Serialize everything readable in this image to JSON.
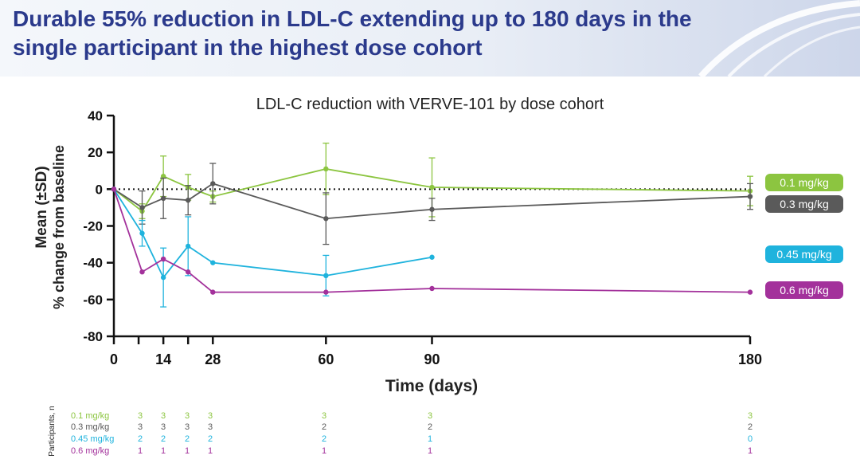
{
  "header": {
    "title": "Durable 55% reduction in LDL-C extending up to 180 days in the single participant in the highest dose cohort"
  },
  "chart_data": {
    "type": "line",
    "title": "LDL-C reduction with VERVE-101 by dose cohort",
    "xlabel": "Time (days)",
    "ylabel": [
      "Mean (±SD)",
      "% change from baseline"
    ],
    "xlim": [
      0,
      180
    ],
    "ylim": [
      -80,
      40
    ],
    "x_ticks": [
      0,
      14,
      28,
      60,
      90,
      180
    ],
    "x_minor_ticks": [
      7,
      21
    ],
    "y_ticks": [
      40,
      20,
      0,
      -20,
      -40,
      -60,
      -80
    ],
    "reference_line": {
      "y": 0,
      "style": "dotted"
    },
    "grid": false,
    "legend_position": "right",
    "series": [
      {
        "name": "0.1 mg/kg",
        "color": "#8cc540",
        "x": [
          0,
          8,
          14,
          21,
          28,
          60,
          90,
          180
        ],
        "y": [
          0,
          -12,
          7,
          1,
          -4,
          11,
          1,
          -1
        ],
        "err": [
          0,
          4,
          11,
          7,
          3,
          14,
          16,
          8
        ]
      },
      {
        "name": "0.3 mg/kg",
        "color": "#5a5a5a",
        "x": [
          0,
          8,
          14,
          21,
          28,
          60,
          90,
          180
        ],
        "y": [
          0,
          -10,
          -5,
          -6,
          3,
          -16,
          -11,
          -4
        ],
        "err": [
          0,
          9,
          11,
          8,
          11,
          14,
          6,
          7
        ]
      },
      {
        "name": "0.45 mg/kg",
        "color": "#1fb3dd",
        "x": [
          0,
          8,
          14,
          21,
          28,
          60,
          90
        ],
        "y": [
          0,
          -24,
          -48,
          -31,
          -40,
          -47,
          -37
        ],
        "err": [
          0,
          7,
          16,
          16,
          0,
          11,
          0
        ]
      },
      {
        "name": "0.6 mg/kg",
        "color": "#a3319b",
        "x": [
          0,
          8,
          14,
          21,
          28,
          60,
          90,
          180
        ],
        "y": [
          0,
          -45,
          -38,
          -45,
          -56,
          -56,
          -54,
          -56
        ],
        "err": [
          0,
          0,
          0,
          0,
          0,
          0,
          0,
          0
        ]
      }
    ],
    "participants": {
      "axis_label": "Participants, n",
      "days": [
        8,
        14,
        21,
        28,
        60,
        90,
        180
      ],
      "rows": [
        {
          "name": "0.1 mg/kg",
          "counts": [
            "3",
            "3",
            "3",
            "3",
            "3",
            "3",
            "3"
          ]
        },
        {
          "name": "0.3 mg/kg",
          "counts": [
            "3",
            "3",
            "3",
            "3",
            "2",
            "2",
            "2"
          ]
        },
        {
          "name": "0.45 mg/kg",
          "counts": [
            "2",
            "2",
            "2",
            "2",
            "2",
            "1",
            "0"
          ]
        },
        {
          "name": "0.6 mg/kg",
          "counts": [
            "1",
            "1",
            "1",
            "1",
            "1",
            "1",
            "1"
          ]
        }
      ]
    }
  }
}
